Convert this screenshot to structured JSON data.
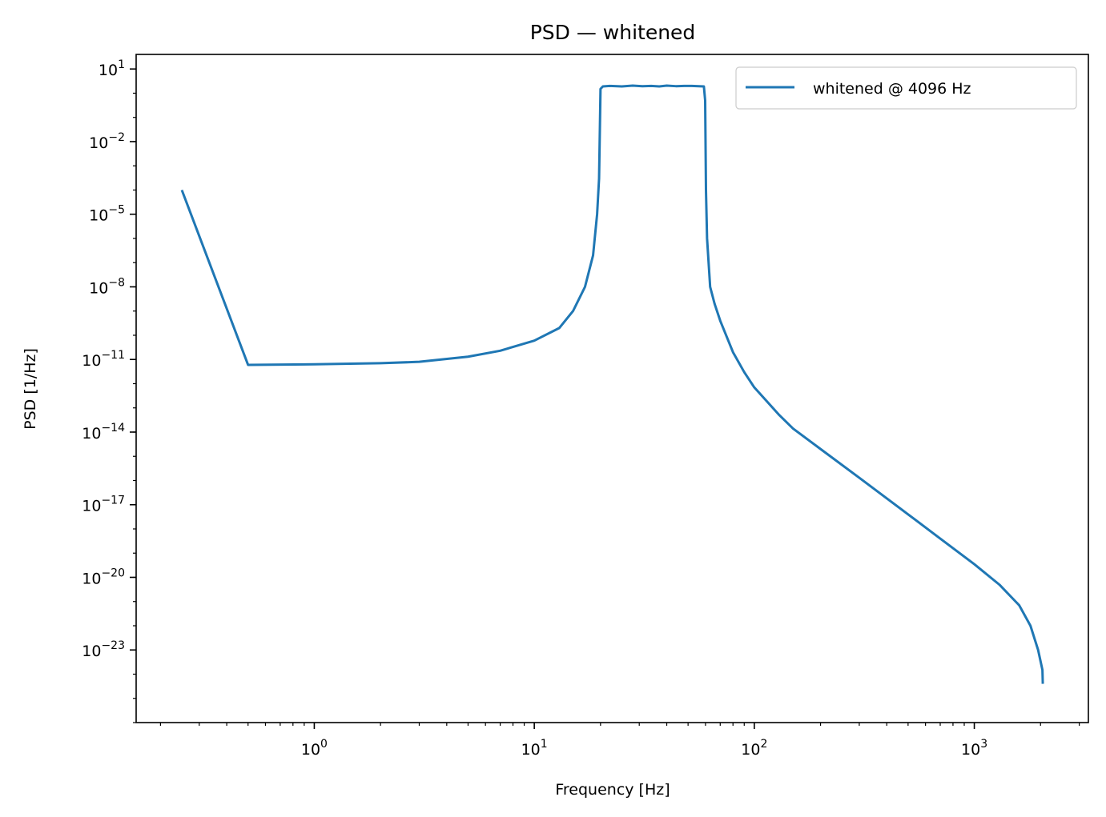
{
  "chart_data": {
    "type": "line",
    "title": "PSD — whitened",
    "xlabel": "Frequency [Hz]",
    "ylabel": "PSD [1/Hz]",
    "xscale": "log",
    "yscale": "log",
    "xlim": [
      0.155,
      3300
    ],
    "ylim": [
      1e-26,
      40
    ],
    "grid": false,
    "legend_position": "top-right",
    "x_ticks": [
      {
        "value": 1,
        "base": "10",
        "exp": "0"
      },
      {
        "value": 10,
        "base": "10",
        "exp": "1"
      },
      {
        "value": 100,
        "base": "10",
        "exp": "2"
      },
      {
        "value": 1000,
        "base": "10",
        "exp": "3"
      }
    ],
    "y_ticks": [
      {
        "value": 10,
        "base": "10",
        "exp": "1"
      },
      {
        "value": 0.01,
        "base": "10",
        "exp": "−2"
      },
      {
        "value": 1e-05,
        "base": "10",
        "exp": "−5"
      },
      {
        "value": 1e-08,
        "base": "10",
        "exp": "−8"
      },
      {
        "value": 1e-11,
        "base": "10",
        "exp": "−11"
      },
      {
        "value": 1e-14,
        "base": "10",
        "exp": "−14"
      },
      {
        "value": 1e-17,
        "base": "10",
        "exp": "−17"
      },
      {
        "value": 1e-20,
        "base": "10",
        "exp": "−20"
      },
      {
        "value": 1e-23,
        "base": "10",
        "exp": "−23"
      }
    ],
    "series": [
      {
        "name": "whitened @ 4096 Hz",
        "color": "#1f77b4",
        "points": [
          [
            0.25,
            0.0001
          ],
          [
            0.5,
            6e-12
          ],
          [
            1.0,
            6.3e-12
          ],
          [
            2.0,
            7e-12
          ],
          [
            3.0,
            8e-12
          ],
          [
            5.0,
            1.3e-11
          ],
          [
            7.0,
            2.3e-11
          ],
          [
            10.0,
            6e-11
          ],
          [
            13.0,
            2e-10
          ],
          [
            15.0,
            1e-09
          ],
          [
            17.0,
            1e-08
          ],
          [
            18.5,
            2e-07
          ],
          [
            19.3,
            1e-05
          ],
          [
            19.7,
            0.0003
          ],
          [
            20.0,
            1.5
          ],
          [
            20.5,
            1.9
          ],
          [
            22.0,
            2.0
          ],
          [
            25.0,
            1.9
          ],
          [
            28.0,
            2.05
          ],
          [
            31.0,
            1.95
          ],
          [
            34.0,
            2.0
          ],
          [
            37.0,
            1.9
          ],
          [
            40.0,
            2.05
          ],
          [
            44.0,
            1.95
          ],
          [
            48.0,
            2.0
          ],
          [
            52.0,
            2.0
          ],
          [
            56.0,
            1.95
          ],
          [
            59.0,
            1.9
          ],
          [
            59.8,
            0.5
          ],
          [
            60.3,
            0.0001
          ],
          [
            61.0,
            1e-06
          ],
          [
            63.0,
            1e-08
          ],
          [
            66.0,
            2e-09
          ],
          [
            70.0,
            4e-10
          ],
          [
            80.0,
            2e-11
          ],
          [
            90.0,
            3e-12
          ],
          [
            100.0,
            7e-13
          ],
          [
            130.0,
            5e-14
          ],
          [
            150.0,
            1.4e-14
          ],
          [
            200.0,
            2e-15
          ],
          [
            300.0,
            1.3e-16
          ],
          [
            500.0,
            4e-18
          ],
          [
            700.0,
            4e-19
          ],
          [
            1000.0,
            3.5e-20
          ],
          [
            1300.0,
            5e-21
          ],
          [
            1600.0,
            7e-22
          ],
          [
            1800.0,
            1e-22
          ],
          [
            1950.0,
            1e-23
          ],
          [
            2040.0,
            1.5e-24
          ],
          [
            2048.0,
            4e-25
          ]
        ]
      }
    ]
  }
}
